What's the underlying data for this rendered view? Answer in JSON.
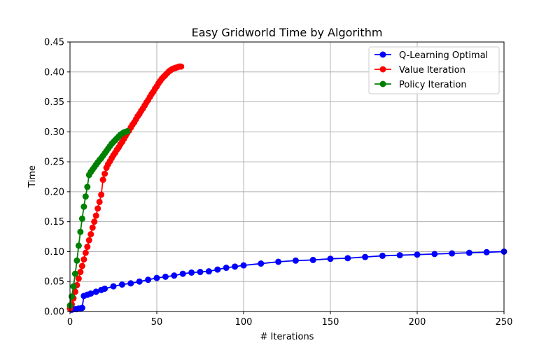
{
  "chart_data": {
    "type": "line",
    "title": "Easy Gridworld Time by Algorithm",
    "xlabel": "# Iterations",
    "ylabel": "Time",
    "xlim": [
      0,
      250
    ],
    "ylim": [
      0,
      0.45
    ],
    "xticks": [
      "0",
      "50",
      "100",
      "150",
      "200",
      "250"
    ],
    "yticks": [
      "0.00",
      "0.05",
      "0.10",
      "0.15",
      "0.20",
      "0.25",
      "0.30",
      "0.35",
      "0.40",
      "0.45"
    ],
    "grid": true,
    "legend_position": "top-right",
    "series": [
      {
        "name": "Q-Learning Optimal",
        "color": "#0000ff",
        "marker": "circle",
        "x": [
          1,
          2,
          3,
          4,
          5,
          6,
          7,
          8,
          10,
          12,
          15,
          18,
          20,
          25,
          30,
          35,
          40,
          45,
          50,
          55,
          60,
          65,
          70,
          75,
          80,
          85,
          90,
          95,
          100,
          110,
          120,
          130,
          140,
          150,
          160,
          170,
          180,
          190,
          200,
          210,
          220,
          230,
          240,
          250
        ],
        "y": [
          0.003,
          0.004,
          0.004,
          0.004,
          0.005,
          0.005,
          0.006,
          0.026,
          0.028,
          0.03,
          0.033,
          0.036,
          0.038,
          0.042,
          0.045,
          0.047,
          0.05,
          0.053,
          0.056,
          0.058,
          0.06,
          0.063,
          0.065,
          0.066,
          0.067,
          0.07,
          0.073,
          0.075,
          0.077,
          0.08,
          0.083,
          0.085,
          0.086,
          0.088,
          0.089,
          0.091,
          0.093,
          0.094,
          0.095,
          0.096,
          0.097,
          0.098,
          0.099,
          0.1
        ]
      },
      {
        "name": "Value Iteration",
        "color": "#ff0000",
        "marker": "circle",
        "x": [
          0,
          1,
          2,
          3,
          4,
          5,
          6,
          7,
          8,
          9,
          10,
          11,
          12,
          13,
          14,
          15,
          16,
          17,
          18,
          19,
          20,
          21,
          22,
          23,
          24,
          25,
          26,
          27,
          28,
          29,
          30,
          31,
          32,
          33,
          34,
          35,
          36,
          37,
          38,
          39,
          40,
          41,
          42,
          43,
          44,
          45,
          46,
          47,
          48,
          49,
          50,
          51,
          52,
          53,
          54,
          55,
          56,
          57,
          58,
          59,
          60,
          61,
          62,
          63,
          64
        ],
        "y": [
          0.005,
          0.012,
          0.022,
          0.033,
          0.044,
          0.055,
          0.066,
          0.076,
          0.087,
          0.098,
          0.108,
          0.119,
          0.129,
          0.14,
          0.15,
          0.16,
          0.172,
          0.183,
          0.195,
          0.22,
          0.23,
          0.24,
          0.246,
          0.251,
          0.256,
          0.261,
          0.265,
          0.27,
          0.274,
          0.279,
          0.283,
          0.288,
          0.293,
          0.298,
          0.302,
          0.307,
          0.312,
          0.316,
          0.321,
          0.326,
          0.33,
          0.335,
          0.339,
          0.344,
          0.349,
          0.353,
          0.358,
          0.363,
          0.367,
          0.372,
          0.376,
          0.381,
          0.385,
          0.389,
          0.392,
          0.395,
          0.398,
          0.401,
          0.403,
          0.405,
          0.406,
          0.407,
          0.408,
          0.409,
          0.409
        ]
      },
      {
        "name": "Policy Iteration",
        "color": "#008000",
        "marker": "circle",
        "x": [
          0,
          1,
          2,
          3,
          4,
          5,
          6,
          7,
          8,
          9,
          10,
          11,
          12,
          13,
          14,
          15,
          16,
          17,
          18,
          19,
          20,
          21,
          22,
          23,
          24,
          25,
          26,
          27,
          28,
          29,
          30,
          31,
          32,
          33
        ],
        "y": [
          0.01,
          0.025,
          0.042,
          0.063,
          0.085,
          0.11,
          0.133,
          0.155,
          0.175,
          0.192,
          0.208,
          0.228,
          0.233,
          0.237,
          0.241,
          0.245,
          0.249,
          0.253,
          0.256,
          0.26,
          0.264,
          0.268,
          0.272,
          0.276,
          0.28,
          0.283,
          0.286,
          0.289,
          0.292,
          0.295,
          0.297,
          0.299,
          0.3,
          0.301
        ]
      }
    ]
  }
}
